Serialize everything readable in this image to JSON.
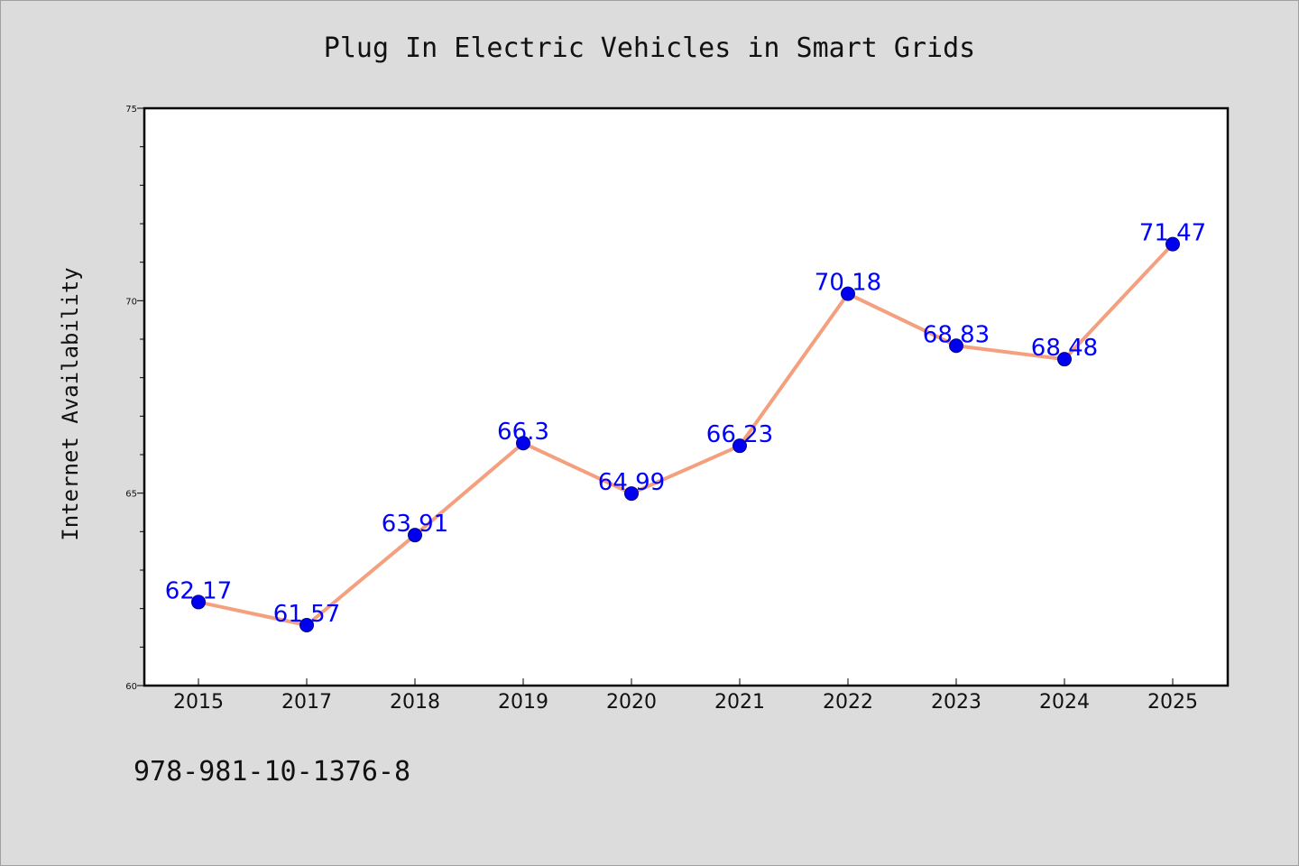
{
  "chart_data": {
    "type": "line",
    "title": "Plug In Electric Vehicles in Smart Grids",
    "xlabel": "",
    "ylabel": "Internet Availability",
    "categories": [
      "2015",
      "2017",
      "2018",
      "2019",
      "2020",
      "2021",
      "2022",
      "2023",
      "2024",
      "2025"
    ],
    "series": [
      {
        "values": [
          62.17,
          61.57,
          63.91,
          66.3,
          64.99,
          66.23,
          70.18,
          68.83,
          68.48,
          71.47
        ],
        "data_labels": [
          "62.17",
          "61.57",
          "63.91",
          "66.3",
          "64.99",
          "66.23",
          "70.18",
          "68.83",
          "68.48",
          "71.47"
        ]
      }
    ],
    "ylim": [
      60,
      75
    ],
    "y_ticks": [
      "60",
      "65",
      "70",
      "75"
    ],
    "y_minor_step": 1,
    "grid": false,
    "legend": "none",
    "colors": {
      "line": "#f4a07f",
      "marker": "#0000ee",
      "marker_edge": "#00008b",
      "data_label": "#0000ff",
      "plot_background": "#ffffff",
      "figure_background": "#dcdcdc"
    }
  },
  "footer_text": "978-981-10-1376-8"
}
